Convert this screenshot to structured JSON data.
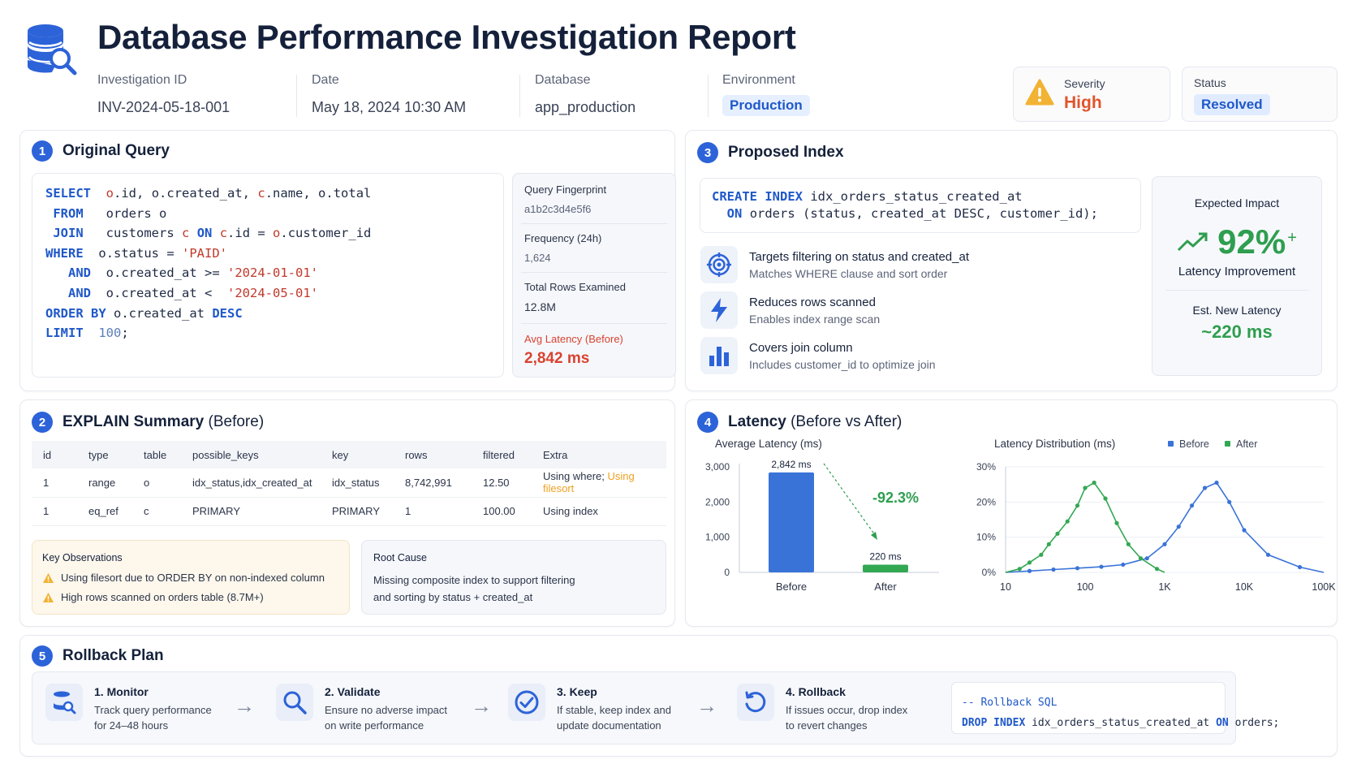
{
  "header": {
    "title": "Database Performance Investigation Report",
    "meta": [
      {
        "label": "Investigation ID",
        "value": "INV-2024-05-18-001"
      },
      {
        "label": "Date",
        "value": "May 18, 2024 10:30 AM"
      },
      {
        "label": "Database",
        "value": "app_production"
      },
      {
        "label": "Environment",
        "value": "Production"
      }
    ],
    "severity": {
      "label": "Severity",
      "value": "High",
      "color": "#e0552b"
    },
    "status": {
      "label": "Status",
      "value": "Resolved"
    }
  },
  "original_query": {
    "number": "1",
    "title": "Original Query",
    "lines": [
      {
        "kw": "SELECT",
        "rest": [
          "o",
          ".id, ",
          "o",
          ".created_at, ",
          "c",
          ".name, ",
          "o",
          ".total"
        ]
      },
      {
        "kw": " FROM",
        "rest": [
          "orders o"
        ]
      },
      {
        "kw": " JOIN",
        "rest": [
          "customers c ON c.id = o.customer_id"
        ]
      },
      {
        "kw": "WHERE",
        "rest": [
          "o.status = 'PAID'"
        ]
      },
      {
        "kw": "AND",
        "rest": [
          "o.created_at >= '2024-01-01'"
        ]
      },
      {
        "kw": "AND",
        "rest": [
          "o.created_at <  '2024-05-01'"
        ]
      },
      {
        "kw": "ORDER BY",
        "rest": [
          "o.created_at DESC"
        ]
      },
      {
        "kw": "LIMIT",
        "rest": [
          "100;"
        ]
      }
    ],
    "fingerprint_label": "Query Fingerprint",
    "fingerprint": "a1b2c3d4e5f6",
    "frequency_label": "Frequency (24h)",
    "frequency": "1,624",
    "rows_label": "Total Rows Examined",
    "rows": "12.8M",
    "latency_label": "Avg Latency (Before)",
    "latency": "2,842 ms",
    "latency_color": "#d9432f"
  },
  "proposed_index": {
    "number": "3",
    "title": "Proposed Index",
    "sql_line1_kw": "CREATE INDEX",
    "sql_line1_rest": "idx_orders_status_created_at",
    "sql_line2_kw": "ON",
    "sql_line2_rest": "orders (status, created_at DESC, customer_id);",
    "features": [
      {
        "icon": "target-icon",
        "title": "Targets filtering on status and created_at",
        "desc": "Matches WHERE clause and sort order"
      },
      {
        "icon": "lightning-icon",
        "title": "Reduces rows scanned",
        "desc": "Enables index range scan"
      },
      {
        "icon": "bar-chart-icon",
        "title": "Covers join column",
        "desc": "Includes customer_id to optimize join"
      }
    ],
    "impact_label": "Expected Impact",
    "impact_value": "92%",
    "impact_plus": "+",
    "impact_caption": "Latency Improvement",
    "new_latency_label": "Est. New Latency",
    "new_latency": "~220 ms",
    "green": "#2e9e4f"
  },
  "explain": {
    "number": "2",
    "title": "EXPLAIN Summary",
    "title_suffix": "(Before)",
    "columns": [
      "id",
      "type",
      "table",
      "possible_keys",
      "key",
      "rows",
      "filtered",
      "Extra"
    ],
    "rows": [
      [
        "1",
        "range",
        "o",
        "idx_status,idx_created_at",
        "idx_status",
        "8,742,991",
        "12.50",
        "Using where;"
      ],
      [
        "1",
        "eq_ref",
        "c",
        "PRIMARY",
        "PRIMARY",
        "1",
        "100.00",
        "Using index"
      ]
    ],
    "row1_extra_highlight": "Using filesort",
    "observations_title": "Key Observations",
    "observations": [
      "Using filesort due to ORDER BY on non-indexed column",
      "High rows scanned on orders table (8.7M+)"
    ],
    "root_cause_title": "Root Cause",
    "root_cause_line1": "Missing composite index to support filtering",
    "root_cause_line2": "and sorting by status + created_at"
  },
  "latency": {
    "number": "4",
    "title": "Latency",
    "title_suffix": "(Before vs After)"
  },
  "chart_data": [
    {
      "type": "bar",
      "title": "Average Latency (ms)",
      "categories": [
        "Before",
        "After"
      ],
      "values": [
        2842,
        220
      ],
      "data_labels": [
        "2,842 ms",
        "220 ms"
      ],
      "ylim": [
        0,
        3000
      ],
      "yticks": [
        "0",
        "1,000",
        "2,000",
        "3,000"
      ],
      "annotation": "-92.3%",
      "colors": [
        "#3a73d8",
        "#33a853"
      ]
    },
    {
      "type": "line",
      "title": "Latency Distribution (ms)",
      "x_scale": "log",
      "xticks": [
        "10",
        "100",
        "1K",
        "10K",
        "100K"
      ],
      "yticks": [
        "0%",
        "10%",
        "20%",
        "30%"
      ],
      "ylim": [
        0,
        30
      ],
      "legend": "top-right",
      "series": [
        {
          "name": "Before",
          "color": "#3a73d8",
          "x": [
            10,
            20,
            40,
            80,
            160,
            300,
            600,
            1000,
            1500,
            2200,
            3200,
            4500,
            6500,
            10000,
            20000,
            50000,
            100000
          ],
          "y": [
            0,
            0.4,
            0.8,
            1.2,
            1.6,
            2.2,
            4,
            8,
            13,
            19,
            24,
            25.5,
            20,
            12,
            5,
            1.5,
            0
          ]
        },
        {
          "name": "After",
          "color": "#33a853",
          "x": [
            10,
            15,
            20,
            28,
            35,
            45,
            60,
            80,
            100,
            130,
            180,
            250,
            350,
            500,
            800,
            1000
          ],
          "y": [
            0,
            1,
            2.8,
            5,
            8,
            11,
            14.5,
            19,
            24,
            25.5,
            21,
            14,
            8,
            4,
            1,
            0
          ]
        }
      ]
    }
  ],
  "rollback": {
    "number": "5",
    "title": "Rollback Plan",
    "steps": [
      {
        "icon": "database-search-icon",
        "title": "1. Monitor",
        "line1": "Track query performance",
        "line2": "for 24–48 hours"
      },
      {
        "icon": "magnifier-icon",
        "title": "2. Validate",
        "line1": "Ensure no adverse impact",
        "line2": "on write performance"
      },
      {
        "icon": "check-circle-icon",
        "title": "3. Keep",
        "line1": "If stable, keep index and",
        "line2": "update documentation"
      },
      {
        "icon": "rotate-icon",
        "title": "4. Rollback",
        "line1": "If issues occur, drop index",
        "line2": "to revert changes"
      }
    ],
    "sql_comment": "-- Rollback SQL",
    "sql_kw1": "DROP INDEX",
    "sql_name": "idx_orders_status_created_at",
    "sql_kw2": "ON",
    "sql_tail": "orders;"
  }
}
